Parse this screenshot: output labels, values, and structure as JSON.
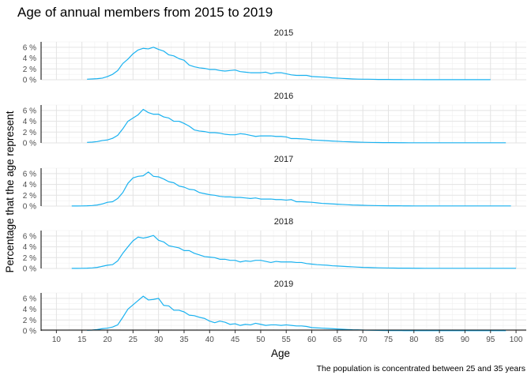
{
  "chart_data": {
    "type": "line",
    "title": "Age of annual members from 2015 to 2019",
    "xlabel": "Age",
    "ylabel": "Percentage that the age represent",
    "caption": "The population is concentrated between 25 and 35 years",
    "xlim": [
      7,
      102
    ],
    "ylim": [
      0,
      7
    ],
    "x_ticks": [
      10,
      15,
      20,
      25,
      30,
      35,
      40,
      45,
      50,
      55,
      60,
      65,
      70,
      75,
      80,
      85,
      90,
      95,
      100
    ],
    "y_ticks": [
      0,
      2,
      4,
      6
    ],
    "y_tick_labels": [
      "0 %",
      "2 %",
      "4 %",
      "6 %"
    ],
    "line_color": "#1ab2f0",
    "grid": true,
    "panels": [
      {
        "label": "2015",
        "x": [
          16,
          17,
          18,
          19,
          20,
          21,
          22,
          23,
          24,
          25,
          26,
          27,
          28,
          29,
          30,
          31,
          32,
          33,
          34,
          35,
          36,
          37,
          38,
          39,
          40,
          41,
          42,
          43,
          44,
          45,
          46,
          47,
          48,
          49,
          50,
          51,
          52,
          53,
          54,
          55,
          56,
          57,
          58,
          59,
          60,
          61,
          62,
          63,
          64,
          65,
          66,
          67,
          68,
          69,
          70,
          71,
          72,
          73,
          74,
          75,
          76,
          77,
          78,
          79,
          80,
          81,
          82,
          83,
          84,
          85,
          86,
          87,
          88,
          89,
          90,
          91,
          92,
          93,
          94,
          95
        ],
        "values": [
          0.1,
          0.15,
          0.2,
          0.3,
          0.6,
          1.0,
          1.7,
          3.0,
          3.8,
          4.8,
          5.5,
          5.8,
          5.7,
          6.0,
          5.6,
          5.3,
          4.6,
          4.4,
          3.9,
          3.6,
          2.7,
          2.4,
          2.2,
          2.1,
          1.9,
          1.9,
          1.7,
          1.6,
          1.7,
          1.8,
          1.5,
          1.4,
          1.3,
          1.3,
          1.3,
          1.4,
          1.1,
          1.3,
          1.3,
          1.1,
          0.9,
          0.8,
          0.8,
          0.8,
          0.6,
          0.55,
          0.5,
          0.45,
          0.35,
          0.3,
          0.25,
          0.2,
          0.15,
          0.12,
          0.1,
          0.1,
          0.08,
          0.06,
          0.05,
          0.05,
          0.04,
          0.04,
          0.03,
          0.03,
          0.03,
          0.03,
          0.02,
          0.02,
          0.02,
          0.02,
          0.02,
          0.02,
          0.02,
          0.02,
          0.02,
          0.02,
          0.02,
          0.02,
          0.02,
          0.02
        ]
      },
      {
        "label": "2016",
        "x": [
          16,
          17,
          18,
          19,
          20,
          21,
          22,
          23,
          24,
          25,
          26,
          27,
          28,
          29,
          30,
          31,
          32,
          33,
          34,
          35,
          36,
          37,
          38,
          39,
          40,
          41,
          42,
          43,
          44,
          45,
          46,
          47,
          48,
          49,
          50,
          51,
          52,
          53,
          54,
          55,
          56,
          57,
          58,
          59,
          60,
          61,
          62,
          63,
          64,
          65,
          66,
          67,
          68,
          69,
          70,
          71,
          72,
          73,
          74,
          75,
          76,
          77,
          78,
          79,
          80,
          81,
          82,
          83,
          84,
          85,
          86,
          87,
          88,
          89,
          90,
          91,
          92,
          93,
          94,
          95,
          96,
          97,
          98
        ],
        "values": [
          0.1,
          0.15,
          0.25,
          0.45,
          0.55,
          0.85,
          1.4,
          2.6,
          4.0,
          4.6,
          5.2,
          6.2,
          5.6,
          5.3,
          5.3,
          4.8,
          4.6,
          4.0,
          4.0,
          3.6,
          3.1,
          2.4,
          2.2,
          2.1,
          1.9,
          1.9,
          1.8,
          1.6,
          1.5,
          1.5,
          1.7,
          1.6,
          1.4,
          1.2,
          1.3,
          1.3,
          1.3,
          1.2,
          1.2,
          1.1,
          0.8,
          0.8,
          0.75,
          0.7,
          0.55,
          0.5,
          0.45,
          0.4,
          0.35,
          0.3,
          0.25,
          0.22,
          0.18,
          0.15,
          0.12,
          0.1,
          0.08,
          0.07,
          0.06,
          0.05,
          0.05,
          0.04,
          0.04,
          0.03,
          0.03,
          0.03,
          0.03,
          0.03,
          0.03,
          0.03,
          0.03,
          0.03,
          0.03,
          0.03,
          0.03,
          0.03,
          0.03,
          0.03,
          0.03,
          0.03,
          0.03,
          0.03,
          0.03
        ]
      },
      {
        "label": "2017",
        "x": [
          13,
          14,
          15,
          16,
          17,
          18,
          19,
          20,
          21,
          22,
          23,
          24,
          25,
          26,
          27,
          28,
          29,
          30,
          31,
          32,
          33,
          34,
          35,
          36,
          37,
          38,
          39,
          40,
          41,
          42,
          43,
          44,
          45,
          46,
          47,
          48,
          49,
          50,
          51,
          52,
          53,
          54,
          55,
          56,
          57,
          58,
          59,
          60,
          61,
          62,
          63,
          64,
          65,
          66,
          67,
          68,
          69,
          70,
          71,
          72,
          73,
          74,
          75,
          76,
          77,
          78,
          79,
          80,
          81,
          82,
          83,
          84,
          85,
          86,
          87,
          88,
          89,
          90,
          91,
          92,
          93,
          94,
          95,
          96,
          97,
          98,
          99
        ],
        "values": [
          0.02,
          0.02,
          0.03,
          0.05,
          0.1,
          0.2,
          0.4,
          0.7,
          0.8,
          1.4,
          2.5,
          4.2,
          5.2,
          5.5,
          5.6,
          6.3,
          5.5,
          5.4,
          5.0,
          4.5,
          4.3,
          3.7,
          3.5,
          3.1,
          3.0,
          2.5,
          2.3,
          2.1,
          2.0,
          1.8,
          1.7,
          1.7,
          1.6,
          1.6,
          1.5,
          1.4,
          1.5,
          1.3,
          1.3,
          1.3,
          1.2,
          1.2,
          1.1,
          1.2,
          0.8,
          0.8,
          0.75,
          0.7,
          0.6,
          0.5,
          0.45,
          0.4,
          0.35,
          0.3,
          0.25,
          0.2,
          0.18,
          0.15,
          0.12,
          0.1,
          0.08,
          0.07,
          0.06,
          0.05,
          0.05,
          0.04,
          0.04,
          0.03,
          0.03,
          0.03,
          0.03,
          0.03,
          0.03,
          0.03,
          0.03,
          0.03,
          0.03,
          0.03,
          0.03,
          0.03,
          0.03,
          0.03,
          0.03,
          0.03,
          0.03,
          0.03,
          0.03
        ]
      },
      {
        "label": "2018",
        "x": [
          13,
          14,
          15,
          16,
          17,
          18,
          19,
          20,
          21,
          22,
          23,
          24,
          25,
          26,
          27,
          28,
          29,
          30,
          31,
          32,
          33,
          34,
          35,
          36,
          37,
          38,
          39,
          40,
          41,
          42,
          43,
          44,
          45,
          46,
          47,
          48,
          49,
          50,
          51,
          52,
          53,
          54,
          55,
          56,
          57,
          58,
          59,
          60,
          61,
          62,
          63,
          64,
          65,
          66,
          67,
          68,
          69,
          70,
          71,
          72,
          73,
          74,
          75,
          76,
          77,
          78,
          79,
          80,
          81,
          82,
          83,
          84,
          85,
          86,
          87,
          88,
          89,
          90,
          91,
          92,
          93,
          94,
          95,
          96,
          97,
          98,
          99,
          100
        ],
        "values": [
          0.02,
          0.02,
          0.03,
          0.05,
          0.1,
          0.2,
          0.4,
          0.6,
          0.7,
          1.4,
          2.8,
          4.0,
          5.1,
          5.8,
          5.6,
          5.8,
          6.1,
          5.2,
          4.9,
          4.2,
          4.0,
          3.8,
          3.3,
          3.3,
          2.8,
          2.5,
          2.2,
          2.1,
          2.0,
          1.7,
          1.7,
          1.5,
          1.5,
          1.2,
          1.4,
          1.3,
          1.5,
          1.5,
          1.3,
          1.1,
          1.3,
          1.2,
          1.2,
          1.2,
          1.1,
          1.1,
          0.9,
          0.8,
          0.7,
          0.65,
          0.6,
          0.5,
          0.45,
          0.4,
          0.35,
          0.3,
          0.25,
          0.2,
          0.18,
          0.15,
          0.12,
          0.1,
          0.08,
          0.07,
          0.06,
          0.05,
          0.05,
          0.04,
          0.04,
          0.03,
          0.03,
          0.03,
          0.03,
          0.03,
          0.03,
          0.03,
          0.03,
          0.03,
          0.03,
          0.03,
          0.03,
          0.03,
          0.03,
          0.03,
          0.03,
          0.03,
          0.03,
          0.03
        ]
      },
      {
        "label": "2019",
        "x": [
          16,
          17,
          18,
          19,
          20,
          21,
          22,
          23,
          24,
          25,
          26,
          27,
          28,
          29,
          30,
          31,
          32,
          33,
          34,
          35,
          36,
          37,
          38,
          39,
          40,
          41,
          42,
          43,
          44,
          45,
          46,
          47,
          48,
          49,
          50,
          51,
          52,
          53,
          54,
          55,
          56,
          57,
          58,
          59,
          60,
          61,
          62,
          63,
          64,
          65,
          66,
          67,
          68,
          69,
          70,
          71,
          72,
          73,
          74,
          75,
          76,
          77,
          78,
          79,
          80,
          81,
          82,
          83,
          84,
          85,
          86,
          87,
          88,
          89,
          90,
          91,
          92,
          93,
          94,
          95,
          96,
          97,
          98
        ],
        "values": [
          0.1,
          0.15,
          0.25,
          0.4,
          0.5,
          0.7,
          1.1,
          2.5,
          4.0,
          4.8,
          5.6,
          6.4,
          5.7,
          5.8,
          6.0,
          4.7,
          4.6,
          3.8,
          3.8,
          3.5,
          2.9,
          2.8,
          2.5,
          2.3,
          1.8,
          1.5,
          1.8,
          1.6,
          1.2,
          1.3,
          1.0,
          1.2,
          1.1,
          1.4,
          1.2,
          1.0,
          1.1,
          1.1,
          1.0,
          1.1,
          1.0,
          0.9,
          0.9,
          0.8,
          0.6,
          0.55,
          0.5,
          0.45,
          0.4,
          0.35,
          0.3,
          0.25,
          0.2,
          0.18,
          0.15,
          0.12,
          0.1,
          0.08,
          0.07,
          0.06,
          0.05,
          0.05,
          0.04,
          0.04,
          0.03,
          0.03,
          0.03,
          0.03,
          0.03,
          0.03,
          0.03,
          0.03,
          0.03,
          0.03,
          0.03,
          0.03,
          0.03,
          0.03,
          0.03,
          0.03,
          0.03,
          0.03,
          0.03
        ]
      }
    ]
  }
}
